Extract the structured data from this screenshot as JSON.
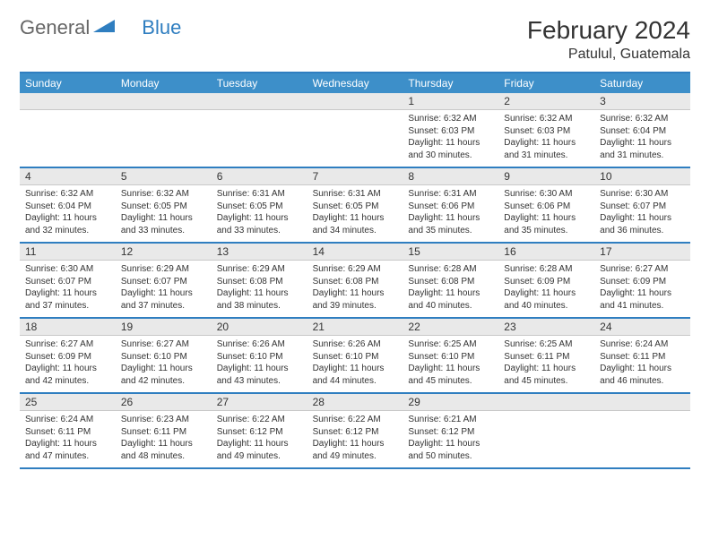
{
  "logo": {
    "text1": "General",
    "text2": "Blue"
  },
  "title": "February 2024",
  "location": "Patulul, Guatemala",
  "colors": {
    "header_bg": "#3d8fc9",
    "accent_border": "#2f7ec0",
    "daynum_bg": "#e9e9e9",
    "text": "#333333"
  },
  "dayHeaders": [
    "Sunday",
    "Monday",
    "Tuesday",
    "Wednesday",
    "Thursday",
    "Friday",
    "Saturday"
  ],
  "weeks": [
    [
      {
        "n": "",
        "sunrise": "",
        "sunset": "",
        "daylight": ""
      },
      {
        "n": "",
        "sunrise": "",
        "sunset": "",
        "daylight": ""
      },
      {
        "n": "",
        "sunrise": "",
        "sunset": "",
        "daylight": ""
      },
      {
        "n": "",
        "sunrise": "",
        "sunset": "",
        "daylight": ""
      },
      {
        "n": "1",
        "sunrise": "Sunrise: 6:32 AM",
        "sunset": "Sunset: 6:03 PM",
        "daylight": "Daylight: 11 hours and 30 minutes."
      },
      {
        "n": "2",
        "sunrise": "Sunrise: 6:32 AM",
        "sunset": "Sunset: 6:03 PM",
        "daylight": "Daylight: 11 hours and 31 minutes."
      },
      {
        "n": "3",
        "sunrise": "Sunrise: 6:32 AM",
        "sunset": "Sunset: 6:04 PM",
        "daylight": "Daylight: 11 hours and 31 minutes."
      }
    ],
    [
      {
        "n": "4",
        "sunrise": "Sunrise: 6:32 AM",
        "sunset": "Sunset: 6:04 PM",
        "daylight": "Daylight: 11 hours and 32 minutes."
      },
      {
        "n": "5",
        "sunrise": "Sunrise: 6:32 AM",
        "sunset": "Sunset: 6:05 PM",
        "daylight": "Daylight: 11 hours and 33 minutes."
      },
      {
        "n": "6",
        "sunrise": "Sunrise: 6:31 AM",
        "sunset": "Sunset: 6:05 PM",
        "daylight": "Daylight: 11 hours and 33 minutes."
      },
      {
        "n": "7",
        "sunrise": "Sunrise: 6:31 AM",
        "sunset": "Sunset: 6:05 PM",
        "daylight": "Daylight: 11 hours and 34 minutes."
      },
      {
        "n": "8",
        "sunrise": "Sunrise: 6:31 AM",
        "sunset": "Sunset: 6:06 PM",
        "daylight": "Daylight: 11 hours and 35 minutes."
      },
      {
        "n": "9",
        "sunrise": "Sunrise: 6:30 AM",
        "sunset": "Sunset: 6:06 PM",
        "daylight": "Daylight: 11 hours and 35 minutes."
      },
      {
        "n": "10",
        "sunrise": "Sunrise: 6:30 AM",
        "sunset": "Sunset: 6:07 PM",
        "daylight": "Daylight: 11 hours and 36 minutes."
      }
    ],
    [
      {
        "n": "11",
        "sunrise": "Sunrise: 6:30 AM",
        "sunset": "Sunset: 6:07 PM",
        "daylight": "Daylight: 11 hours and 37 minutes."
      },
      {
        "n": "12",
        "sunrise": "Sunrise: 6:29 AM",
        "sunset": "Sunset: 6:07 PM",
        "daylight": "Daylight: 11 hours and 37 minutes."
      },
      {
        "n": "13",
        "sunrise": "Sunrise: 6:29 AM",
        "sunset": "Sunset: 6:08 PM",
        "daylight": "Daylight: 11 hours and 38 minutes."
      },
      {
        "n": "14",
        "sunrise": "Sunrise: 6:29 AM",
        "sunset": "Sunset: 6:08 PM",
        "daylight": "Daylight: 11 hours and 39 minutes."
      },
      {
        "n": "15",
        "sunrise": "Sunrise: 6:28 AM",
        "sunset": "Sunset: 6:08 PM",
        "daylight": "Daylight: 11 hours and 40 minutes."
      },
      {
        "n": "16",
        "sunrise": "Sunrise: 6:28 AM",
        "sunset": "Sunset: 6:09 PM",
        "daylight": "Daylight: 11 hours and 40 minutes."
      },
      {
        "n": "17",
        "sunrise": "Sunrise: 6:27 AM",
        "sunset": "Sunset: 6:09 PM",
        "daylight": "Daylight: 11 hours and 41 minutes."
      }
    ],
    [
      {
        "n": "18",
        "sunrise": "Sunrise: 6:27 AM",
        "sunset": "Sunset: 6:09 PM",
        "daylight": "Daylight: 11 hours and 42 minutes."
      },
      {
        "n": "19",
        "sunrise": "Sunrise: 6:27 AM",
        "sunset": "Sunset: 6:10 PM",
        "daylight": "Daylight: 11 hours and 42 minutes."
      },
      {
        "n": "20",
        "sunrise": "Sunrise: 6:26 AM",
        "sunset": "Sunset: 6:10 PM",
        "daylight": "Daylight: 11 hours and 43 minutes."
      },
      {
        "n": "21",
        "sunrise": "Sunrise: 6:26 AM",
        "sunset": "Sunset: 6:10 PM",
        "daylight": "Daylight: 11 hours and 44 minutes."
      },
      {
        "n": "22",
        "sunrise": "Sunrise: 6:25 AM",
        "sunset": "Sunset: 6:10 PM",
        "daylight": "Daylight: 11 hours and 45 minutes."
      },
      {
        "n": "23",
        "sunrise": "Sunrise: 6:25 AM",
        "sunset": "Sunset: 6:11 PM",
        "daylight": "Daylight: 11 hours and 45 minutes."
      },
      {
        "n": "24",
        "sunrise": "Sunrise: 6:24 AM",
        "sunset": "Sunset: 6:11 PM",
        "daylight": "Daylight: 11 hours and 46 minutes."
      }
    ],
    [
      {
        "n": "25",
        "sunrise": "Sunrise: 6:24 AM",
        "sunset": "Sunset: 6:11 PM",
        "daylight": "Daylight: 11 hours and 47 minutes."
      },
      {
        "n": "26",
        "sunrise": "Sunrise: 6:23 AM",
        "sunset": "Sunset: 6:11 PM",
        "daylight": "Daylight: 11 hours and 48 minutes."
      },
      {
        "n": "27",
        "sunrise": "Sunrise: 6:22 AM",
        "sunset": "Sunset: 6:12 PM",
        "daylight": "Daylight: 11 hours and 49 minutes."
      },
      {
        "n": "28",
        "sunrise": "Sunrise: 6:22 AM",
        "sunset": "Sunset: 6:12 PM",
        "daylight": "Daylight: 11 hours and 49 minutes."
      },
      {
        "n": "29",
        "sunrise": "Sunrise: 6:21 AM",
        "sunset": "Sunset: 6:12 PM",
        "daylight": "Daylight: 11 hours and 50 minutes."
      },
      {
        "n": "",
        "sunrise": "",
        "sunset": "",
        "daylight": ""
      },
      {
        "n": "",
        "sunrise": "",
        "sunset": "",
        "daylight": ""
      }
    ]
  ]
}
